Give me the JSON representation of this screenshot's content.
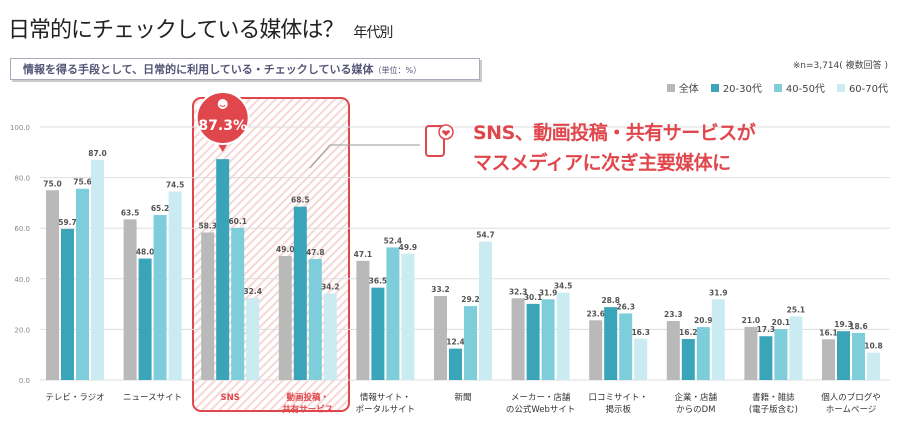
{
  "header": {
    "title": "日常的にチェックしている媒体は？",
    "subtitle": "年代別",
    "box_label": "情報を得る手段として、日常的に利用している・チェックしている媒体",
    "box_unit": "（単位：%）",
    "note": "※n=3,714( 複数回答 )"
  },
  "annotation": {
    "line1": "SNS、動画投稿・共有サービスが",
    "line2": "マスメディアに次ぎ主要媒体に",
    "icon": "smartphone-heart-icon",
    "bubble_label": "87.3%",
    "bubble_icon": "smiley-icon"
  },
  "colors": {
    "accent": "#e0474c"
  },
  "chart_data": {
    "type": "bar",
    "ylim": [
      0,
      100
    ],
    "yticks": [
      "0.0",
      "20.0",
      "40.0",
      "60.0",
      "80.0",
      "100.0"
    ],
    "grid": true,
    "legend_position": "top-right",
    "categories": [
      "テレビ・ラジオ",
      "ニュースサイト",
      "SNS",
      "動画投稿・\n共有サービス",
      "情報サイト・\nポータルサイト",
      "新聞",
      "メーカー・店舗\nの公式Webサイト",
      "口コミサイト・\n掲示板",
      "企業・店舗\nからのDM",
      "書籍・雑誌\n(電子版含む)",
      "個人のブログや\nホームページ"
    ],
    "highlighted_categories": [
      "SNS",
      "動画投稿・\n共有サービス"
    ],
    "series": [
      {
        "name": "全体",
        "color": "#b9b9b9",
        "values": [
          75.0,
          63.5,
          58.3,
          49.0,
          47.1,
          33.2,
          32.3,
          23.6,
          23.3,
          21.0,
          16.1
        ]
      },
      {
        "name": "20-30代",
        "color": "#3aa4b8",
        "values": [
          59.7,
          48.0,
          87.3,
          68.5,
          36.5,
          12.4,
          30.1,
          28.8,
          16.2,
          17.3,
          19.3
        ]
      },
      {
        "name": "40-50代",
        "color": "#7dcddb",
        "values": [
          75.6,
          65.2,
          60.1,
          47.8,
          52.4,
          29.2,
          31.9,
          26.3,
          20.9,
          20.1,
          18.6
        ]
      },
      {
        "name": "60-70代",
        "color": "#c9ebf1",
        "values": [
          87.0,
          74.5,
          32.4,
          34.2,
          49.9,
          54.7,
          34.5,
          16.3,
          31.9,
          25.1,
          10.8
        ]
      }
    ]
  }
}
